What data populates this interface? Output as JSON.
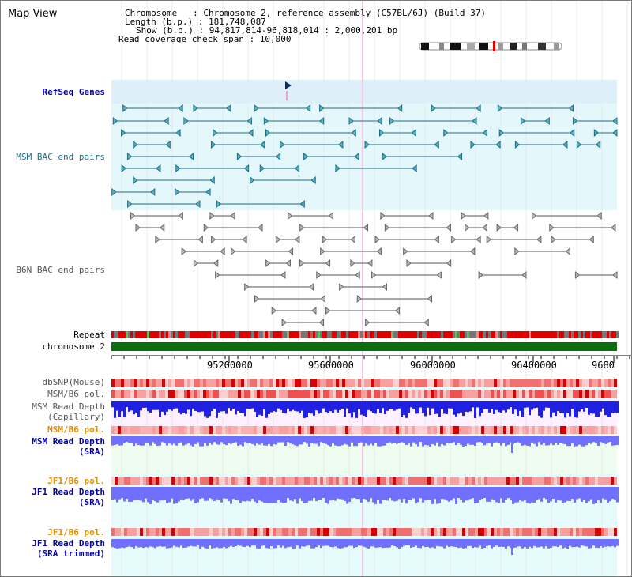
{
  "title": "Map View",
  "info": {
    "chromosome_label": "Chromosome   : Chromosome 2, reference assembly (C57BL/6J) (Build 37)",
    "length_label": "Length (b.p.) : 181,748,087",
    "show_label": "Show (b.p.) : 94,817,814-96,818,014 : 2,000,201 bp",
    "span_label": "Read coverage check span : 10,000"
  },
  "tracks": {
    "refseq": "RefSeq Genes",
    "msm_bac": "MSM BAC end pairs",
    "b6n_bac": "B6N BAC end pairs",
    "repeat": "Repeat",
    "chromosome": "chromosome 2",
    "dbsnp": "dbSNP(Mouse)",
    "msm_b6_pol": "MSM/B6 pol.",
    "msm_depth_cap_1": "MSM Read Depth",
    "msm_depth_cap_2": "(Capillary)",
    "msm_b6_pol2": "MSM/B6 pol.",
    "msm_depth_sra_1": "MSM Read Depth",
    "msm_depth_sra_2": "(SRA)",
    "jf1_pol": "JF1/B6 pol.",
    "jf1_depth_sra_1": "JF1 Read Depth",
    "jf1_depth_sra_2": "(SRA)",
    "jf1_pol2": "JF1/B6 pol.",
    "jf1_depth_trim_1": "JF1 Read Depth",
    "jf1_depth_trim_2": "(SRA trimmed)"
  },
  "axis": {
    "ticks": [
      "95200000",
      "95600000",
      "96000000",
      "96400000",
      "9680"
    ]
  },
  "colors": {
    "refseq_band": "#ddf0fa",
    "bac_band": "#e4f8fc",
    "gene_line": "#1a6e80",
    "bac_line": "#555555",
    "repeat_red": "#e00000",
    "chromosome_green": "#0a6e0a",
    "depth_blue": "#2020e0",
    "depth_light_blue": "#7070ff",
    "pol_red": "#f04040",
    "label_blue": "#0000a0",
    "label_orange": "#e09000",
    "label_teal": "#1a6e80"
  }
}
